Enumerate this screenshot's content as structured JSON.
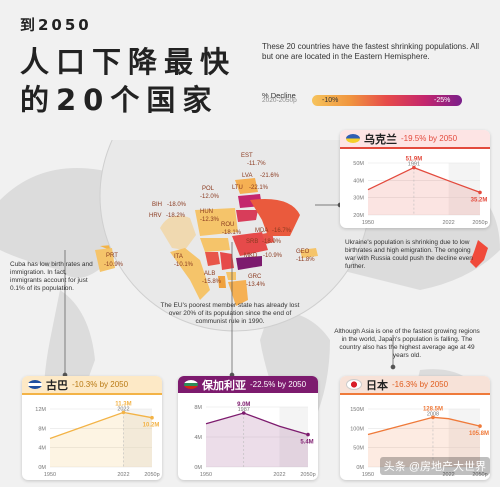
{
  "header": {
    "subtitle": "到2050",
    "title_line1": "人口下降最快",
    "title_line2": "的20个国家"
  },
  "blurb": "These 20 countries have the fastest shrinking populations. All but one are located in the Eastern Hemisphere.",
  "legend": {
    "title": "% Decline",
    "period": "2020-2050p",
    "min_label": "-10%",
    "max_label": "-25%"
  },
  "europe_labels": [
    {
      "code": "EST",
      "value": "-11.7%"
    },
    {
      "code": "LVA",
      "value": "-21.6%"
    },
    {
      "code": "LTU",
      "value": "-22.1%"
    },
    {
      "code": "POL",
      "value": "-12.0%"
    },
    {
      "code": "BIH",
      "value": "-18.0%"
    },
    {
      "code": "HRV",
      "value": "-18.2%"
    },
    {
      "code": "HUN",
      "value": "-12.3%"
    },
    {
      "code": "MDA",
      "value": "-16.7%"
    },
    {
      "code": "ROU",
      "value": "-18.1%"
    },
    {
      "code": "SRB",
      "value": "-18.9%"
    },
    {
      "code": "PRT",
      "value": "-10.9%"
    },
    {
      "code": "ITA",
      "value": "-10.1%"
    },
    {
      "code": "MKD",
      "value": "-10.9%"
    },
    {
      "code": "GEO",
      "value": "-11.8%"
    },
    {
      "code": "ALB",
      "value": "-15.8%"
    },
    {
      "code": "GRC",
      "value": "-13.4%"
    }
  ],
  "notes": {
    "cuba": "Cuba has low birth rates and immigration. In fact, immigrants account for just 0.1% of its population.",
    "europe": "The EU's poorest member state has already lost over 20% of its population since the end of communist rule in 1990.",
    "ukraine": "Ukraine's population is shrinking due to low birthrates and high emigration. The ongoing war with Russia could push the decline even further.",
    "japan": "Although Asia is one of the fastest growing regions in the world, Japan's population is falling. The country also has the highest average age at 49 years old."
  },
  "colors": {
    "ukraine_head": "#fde4e4",
    "cuba_head": "#fde9c6",
    "bulgaria_head": "#7d1b6e",
    "japan_head": "#f7e2d8",
    "ukraine_line": "#e34a3d",
    "cuba_line": "#f3b346",
    "bulgaria_line": "#7d1b6e",
    "japan_line": "#ef7a3a"
  },
  "watermark": "头条 @房地产大世界",
  "chart_data": [
    {
      "type": "line",
      "country": "乌克兰",
      "header_stat": "-19.5% by 2050",
      "x": [
        1950,
        1991,
        2022,
        2050
      ],
      "x_ticks": [
        "1950",
        "2022",
        "2050p"
      ],
      "y": [
        37.0,
        51.9,
        43.0,
        35.2
      ],
      "y_ticks": [
        "20M",
        "30M",
        "40M",
        "50M"
      ],
      "ylim": [
        20,
        55
      ],
      "peak_label": "51.9M",
      "peak_year": "1991",
      "end_label": "35.2M"
    },
    {
      "type": "line",
      "country": "古巴",
      "header_stat": "-10.3% by 2050",
      "x": [
        1950,
        2022,
        2050
      ],
      "x_ticks": [
        "1950",
        "2022",
        "2050p"
      ],
      "y": [
        5.9,
        11.3,
        10.2
      ],
      "y_ticks": [
        "0M",
        "4M",
        "8M",
        "12M"
      ],
      "ylim": [
        0,
        12
      ],
      "peak_label": "11.3M",
      "peak_year": "2022",
      "end_label": "10.2M"
    },
    {
      "type": "line",
      "country": "保加利亚",
      "header_stat": "-22.5% by 2050",
      "x": [
        1950,
        1987,
        2022,
        2050
      ],
      "x_ticks": [
        "1950",
        "2022",
        "2050p"
      ],
      "y": [
        7.2,
        9.0,
        6.8,
        5.4
      ],
      "y_ticks": [
        "0M",
        "4M",
        "8M"
      ],
      "ylim": [
        0,
        10
      ],
      "peak_label": "9.0M",
      "peak_year": "1987",
      "end_label": "5.4M"
    },
    {
      "type": "line",
      "country": "日本",
      "header_stat": "-16.3% by 2050",
      "x": [
        1950,
        2008,
        2022,
        2050
      ],
      "x_ticks": [
        "1950",
        "2022",
        "2050p"
      ],
      "y": [
        84.0,
        128.5,
        125.0,
        105.8
      ],
      "y_ticks": [
        "0M",
        "50M",
        "100M",
        "150M"
      ],
      "ylim": [
        0,
        150
      ],
      "peak_label": "128.5M",
      "peak_year": "2008",
      "end_label": "105.8M"
    }
  ]
}
